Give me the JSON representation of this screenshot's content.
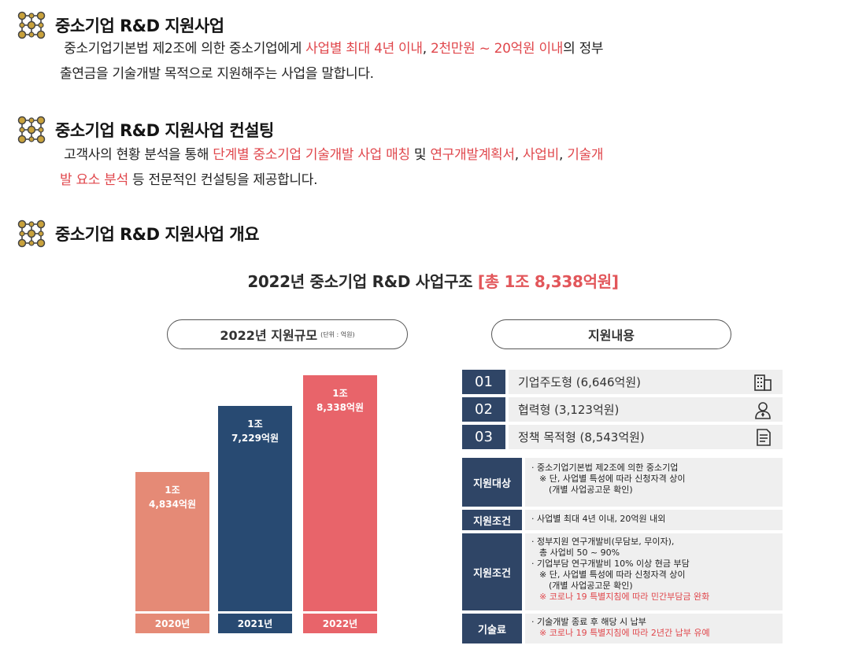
{
  "sections": [
    {
      "title": "중소기업 R&D 지원사업",
      "line1_a": "중소기업기본법 제2조에 의한 중소기업에게 ",
      "line1_b": "사업별 최대 4년 이내",
      "line1_c": ", ",
      "line1_d": "2천만원 ~ 20억원 이내",
      "line1_e": "의 정부",
      "line2": "출연금을 기술개발 목적으로 지원해주는 사업을 말합니다."
    },
    {
      "title": "중소기업 R&D 지원사업 컨설팅",
      "line1_a": "고객사의 현황 분석을 통해 ",
      "line1_b": "단계별 중소기업 기술개발 사업 매칭",
      "line1_c": " 및 ",
      "line1_d": "연구개발계획서",
      "line1_e": ", ",
      "line1_f": "사업비",
      "line1_g": ", ",
      "line1_h": "기술개",
      "line2_a": "발 요소 분석",
      "line2_b": " 등 전문적인 컨설팅을 제공합니다."
    },
    {
      "title": "중소기업 R&D 지원사업 개요"
    }
  ],
  "main_title": {
    "text": "2022년 중소기업 R&D 사업구조 ",
    "highlight": "[총 1조 8,338억원]"
  },
  "left_pill": {
    "label": "2022년 지원규모",
    "unit": "(단위 : 억원)"
  },
  "right_pill": {
    "label": "지원내용"
  },
  "chart_data": {
    "type": "bar",
    "categories": [
      "2020년",
      "2021년",
      "2022년"
    ],
    "values": [
      14834,
      17229,
      18338
    ],
    "value_labels": [
      "1조\n4,834억원",
      "1조\n7,229억원",
      "1조\n8,338억원"
    ],
    "colors": [
      "#e58a76",
      "#284a72",
      "#e8646a"
    ]
  },
  "programs": [
    {
      "num": "01",
      "label": "기업주도형 (6,646억원)",
      "icon": "building-icon"
    },
    {
      "num": "02",
      "label": "협력형 (3,123억원)",
      "icon": "person-icon"
    },
    {
      "num": "03",
      "label": "정책 목적형 (8,543억원)",
      "icon": "document-icon"
    }
  ],
  "info": {
    "target": {
      "label": "지원대상",
      "l1": "· 중소기업기본법 제2조에 의한 중소기업",
      "l2": "※ 단, 사업별 특성에 따라 신청자격 상이",
      "l3": "(개별 사업공고문 확인)"
    },
    "cond1": {
      "label": "지원조건",
      "l1": "· 사업별 최대 4년 이내,  20억원 내외"
    },
    "cond2": {
      "label": "지원조건",
      "l1": "· 정부지원 연구개발비(무담보, 무이자),",
      "l2": "총 사업비 50 ~ 90%",
      "l3": "· 기업부담 연구개발비 10% 이상 현금 부담",
      "l4": "※ 단, 사업별 특성에 따라 신청자격 상이",
      "l5": "(개별 사업공고문 확인)",
      "l6": "※ 코로나 19 특별지침에 따라 민간부담금 완화"
    },
    "fee": {
      "label": "기술료",
      "l1": "· 기술개발 종료 후 해당 시 납부",
      "l2": "※ 코로나 19 특별지침에 따라 2년간 납부 유예"
    }
  }
}
